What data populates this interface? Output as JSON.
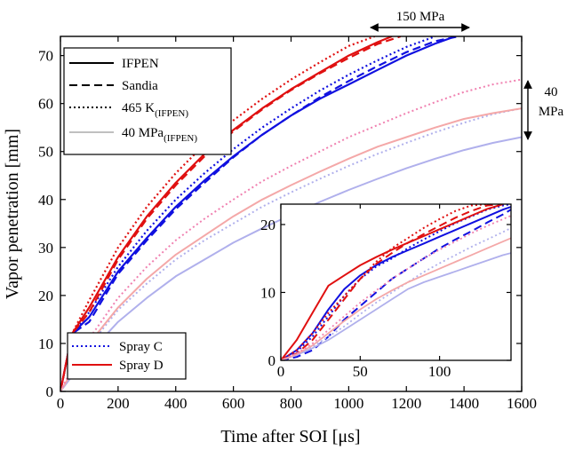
{
  "chart_data": [
    {
      "type": "line",
      "title": "",
      "xlabel": "Time after SOI [μs]",
      "ylabel": "Vapor penetration [mm]",
      "xlim": [
        0,
        1600
      ],
      "ylim": [
        0,
        74
      ],
      "xticks": [
        "0",
        "200",
        "400",
        "600",
        "800",
        "1000",
        "1200",
        "1400",
        "1600"
      ],
      "yticks": [
        "0",
        "10",
        "20",
        "30",
        "40",
        "50",
        "60",
        "70"
      ],
      "grid": false,
      "legend_style": {
        "placement": "top-left",
        "entries": [
          {
            "label": "IFPEN",
            "sub": "",
            "style": "solid",
            "color": "#000000"
          },
          {
            "label": "Sandia",
            "sub": "",
            "style": "dashed",
            "color": "#000000"
          },
          {
            "label": "465 K",
            "sub": "(IFPEN)",
            "style": "dotted",
            "color": "#000000"
          },
          {
            "label": "40 MPa",
            "sub": "(IFPEN)",
            "style": "solid",
            "color": "#c0c0c0"
          }
        ]
      },
      "legend_color": {
        "placement": "bottom-left",
        "entries": [
          {
            "label": "Spray C",
            "style": "dotted",
            "color": "#1010e0"
          },
          {
            "label": "Spray D",
            "style": "solid",
            "color": "#e01010"
          }
        ]
      },
      "annotations": [
        {
          "text": "150 MPa",
          "kind": "horizontal-arrow",
          "x_range": [
            1060,
            1380
          ],
          "y": 74
        },
        {
          "text": "40",
          "text2": "MPa",
          "kind": "vertical-arrow",
          "x": 1610,
          "y_range": [
            53,
            65
          ]
        }
      ],
      "series": [
        {
          "color": "#1010e0",
          "style": "solid",
          "width": 2.2,
          "x": [
            0,
            40,
            100,
            200,
            300,
            400,
            500,
            600,
            700,
            800,
            900,
            1000,
            1100,
            1200,
            1300,
            1370
          ],
          "y": [
            0,
            12,
            15.5,
            25,
            32,
            38.5,
            44,
            49,
            53.5,
            57.5,
            61,
            64,
            67,
            70,
            72.5,
            74
          ]
        },
        {
          "color": "#1010e0",
          "style": "dashed",
          "width": 2.2,
          "x": [
            0,
            40,
            100,
            200,
            300,
            400,
            500,
            600,
            700,
            800,
            900,
            1000,
            1100,
            1200,
            1300,
            1380
          ],
          "y": [
            0,
            12,
            14.5,
            24.5,
            31.5,
            38,
            43.5,
            48.8,
            53.5,
            57.5,
            61.3,
            64.7,
            67.8,
            70.7,
            73,
            74
          ]
        },
        {
          "color": "#1010e0",
          "style": "dotted",
          "width": 2.2,
          "x": [
            0,
            40,
            100,
            200,
            300,
            400,
            500,
            600,
            700,
            800,
            900,
            1000,
            1100,
            1200,
            1300
          ],
          "y": [
            0,
            12,
            16.5,
            26,
            33.5,
            40,
            45.5,
            50.5,
            55,
            59,
            62.7,
            66,
            69,
            71.8,
            74
          ]
        },
        {
          "color": "#e01010",
          "style": "solid",
          "width": 2.2,
          "x": [
            0,
            40,
            100,
            200,
            300,
            400,
            500,
            600,
            700,
            800,
            900,
            1000,
            1100,
            1150
          ],
          "y": [
            0,
            12,
            17.5,
            28,
            36.5,
            43.5,
            49.5,
            54.5,
            59,
            63,
            66.5,
            70,
            72.8,
            74
          ]
        },
        {
          "color": "#e01010",
          "style": "dashed",
          "width": 2.2,
          "x": [
            0,
            40,
            100,
            200,
            300,
            400,
            500,
            600,
            700,
            800,
            900,
            1000,
            1100,
            1180
          ],
          "y": [
            0,
            12,
            16.5,
            27.5,
            36,
            43,
            49,
            54.2,
            58.8,
            62.8,
            66.3,
            69.5,
            72.4,
            74
          ]
        },
        {
          "color": "#e01010",
          "style": "dotted",
          "width": 2.2,
          "x": [
            0,
            40,
            100,
            200,
            300,
            400,
            500,
            600,
            700,
            800,
            900,
            1000,
            1090
          ],
          "y": [
            0,
            12,
            19,
            30,
            38.5,
            45.5,
            51.5,
            56.5,
            61,
            65,
            68.6,
            72,
            74
          ]
        },
        {
          "color": "#b0b0ec",
          "style": "solid",
          "width": 2.0,
          "x": [
            0,
            50,
            100,
            200,
            300,
            400,
            500,
            600,
            700,
            800,
            900,
            1000,
            1100,
            1200,
            1300,
            1400,
            1500,
            1600
          ],
          "y": [
            0,
            4,
            8,
            14.5,
            19.5,
            24,
            27.5,
            31,
            34,
            36.8,
            39.5,
            42,
            44.3,
            46.5,
            48.5,
            50.3,
            51.8,
            53
          ]
        },
        {
          "color": "#b0b0ec",
          "style": "dotted",
          "width": 2.0,
          "x": [
            0,
            50,
            100,
            200,
            300,
            400,
            500,
            600,
            700,
            800,
            900,
            1000,
            1100,
            1200,
            1300,
            1400,
            1500,
            1600
          ],
          "y": [
            0,
            5,
            9.5,
            17,
            22.5,
            27.5,
            31.5,
            35,
            38.5,
            41.5,
            44.3,
            47,
            49.5,
            51.8,
            54,
            56,
            57.8,
            59
          ]
        },
        {
          "color": "#f4a8a8",
          "style": "solid",
          "width": 2.0,
          "x": [
            0,
            50,
            100,
            200,
            300,
            400,
            500,
            600,
            700,
            800,
            900,
            1000,
            1100,
            1200,
            1300,
            1400,
            1500,
            1600
          ],
          "y": [
            0,
            5,
            10,
            17.5,
            23.5,
            28.5,
            32.5,
            36.5,
            40,
            43,
            45.8,
            48.5,
            51,
            53,
            55,
            56.8,
            58,
            59
          ]
        },
        {
          "color": "#f080b0",
          "style": "dotted",
          "width": 2.0,
          "x": [
            0,
            50,
            100,
            200,
            300,
            400,
            500,
            600,
            700,
            800,
            900,
            1000,
            1100,
            1200,
            1300,
            1400,
            1500,
            1600
          ],
          "y": [
            0,
            6,
            11,
            19.5,
            26,
            31.5,
            36,
            40,
            43.8,
            47,
            50,
            53,
            55.5,
            58,
            60.3,
            62.4,
            64,
            65
          ]
        }
      ]
    },
    {
      "type": "line",
      "title": "",
      "xlabel": "",
      "ylabel": "",
      "xlim": [
        0,
        145
      ],
      "ylim": [
        0,
        23
      ],
      "xticks": [
        "0",
        "50",
        "100"
      ],
      "yticks": [
        "0",
        "10",
        "20"
      ],
      "grid": false,
      "series": [
        {
          "color": "#1010e0",
          "style": "solid",
          "width": 2.0,
          "x": [
            0,
            10,
            20,
            30,
            40,
            50,
            60,
            70,
            80,
            90,
            100,
            110,
            120,
            130,
            140,
            145
          ],
          "y": [
            0,
            1.5,
            4,
            7.5,
            10.5,
            12.5,
            14,
            15.2,
            16.2,
            17.2,
            18.2,
            19.2,
            20.2,
            21.2,
            22.2,
            22.6
          ]
        },
        {
          "color": "#1010e0",
          "style": "dashed",
          "width": 2.0,
          "x": [
            0,
            10,
            20,
            30,
            40,
            50,
            60,
            70,
            80,
            90,
            100,
            110,
            120,
            130,
            140,
            145
          ],
          "y": [
            0,
            0.5,
            1.5,
            3.5,
            6,
            8,
            10,
            12,
            13.5,
            15,
            16.5,
            17.8,
            19,
            20.3,
            21.5,
            22.2
          ]
        },
        {
          "color": "#1010e0",
          "style": "dotted",
          "width": 2.0,
          "x": [
            0,
            10,
            20,
            30,
            40,
            50,
            60,
            70,
            80,
            90,
            100,
            110,
            120,
            130,
            140,
            145
          ],
          "y": [
            0,
            1.3,
            3.5,
            6.5,
            9.5,
            12,
            13.8,
            15,
            16.5,
            17.8,
            19,
            20.2,
            21.2,
            22.2,
            22.8,
            23
          ]
        },
        {
          "color": "#e01010",
          "style": "solid",
          "width": 2.0,
          "x": [
            0,
            10,
            20,
            30,
            40,
            50,
            60,
            70,
            80,
            90,
            100,
            110,
            120,
            130,
            140
          ],
          "y": [
            0,
            3,
            7,
            11,
            12.5,
            14,
            15.2,
            16.3,
            17.3,
            18.3,
            19.3,
            20.3,
            21.3,
            22.3,
            23
          ]
        },
        {
          "color": "#e01010",
          "style": "dashed",
          "width": 2.0,
          "x": [
            0,
            10,
            20,
            30,
            40,
            50,
            60,
            70,
            80,
            90,
            100,
            110,
            120,
            130,
            138
          ],
          "y": [
            0,
            1,
            3,
            6,
            9,
            12,
            14.2,
            15.8,
            17.3,
            18.6,
            19.8,
            21,
            22,
            22.8,
            23
          ]
        },
        {
          "color": "#e01010",
          "style": "dotted",
          "width": 2.0,
          "x": [
            0,
            10,
            20,
            30,
            40,
            50,
            60,
            70,
            80,
            90,
            100,
            110,
            120,
            130
          ],
          "y": [
            0,
            1.5,
            4,
            7,
            9.5,
            12,
            14.5,
            16.5,
            18,
            19.5,
            20.8,
            22,
            22.8,
            23
          ]
        },
        {
          "color": "#b0b0ec",
          "style": "solid",
          "width": 1.8,
          "x": [
            0,
            10,
            20,
            30,
            40,
            50,
            60,
            70,
            80,
            90,
            100,
            110,
            120,
            130,
            140,
            145
          ],
          "y": [
            0,
            0.8,
            1.8,
            3,
            4.5,
            6,
            7.5,
            9,
            10.5,
            11.5,
            12.3,
            13.1,
            13.9,
            14.7,
            15.5,
            15.8
          ]
        },
        {
          "color": "#b0b0ec",
          "style": "dotted",
          "width": 1.8,
          "x": [
            0,
            10,
            20,
            30,
            40,
            50,
            60,
            70,
            80,
            90,
            100,
            110,
            120,
            130,
            140,
            145
          ],
          "y": [
            0,
            0.8,
            2,
            3.5,
            5,
            6.8,
            8.5,
            10,
            11.5,
            13,
            14.3,
            15.5,
            16.7,
            17.8,
            18.9,
            19.5
          ]
        },
        {
          "color": "#f4a8a8",
          "style": "solid",
          "width": 1.8,
          "x": [
            0,
            10,
            20,
            30,
            40,
            50,
            60,
            70,
            80,
            90,
            100,
            110,
            120,
            130,
            140,
            145
          ],
          "y": [
            0,
            0.9,
            2.2,
            4,
            5.8,
            7.5,
            9,
            10.3,
            11.5,
            12.5,
            13.5,
            14.5,
            15.5,
            16.5,
            17.5,
            18
          ]
        },
        {
          "color": "#f080b0",
          "style": "dotted",
          "width": 1.8,
          "x": [
            0,
            10,
            20,
            30,
            40,
            50,
            60,
            70,
            80,
            90,
            100,
            110,
            120,
            130,
            140,
            145
          ],
          "y": [
            0,
            1,
            2.5,
            4.5,
            6.5,
            8.5,
            10.3,
            12,
            13.5,
            15,
            16.3,
            17.5,
            18.7,
            19.8,
            20.8,
            21.3
          ]
        }
      ]
    }
  ]
}
